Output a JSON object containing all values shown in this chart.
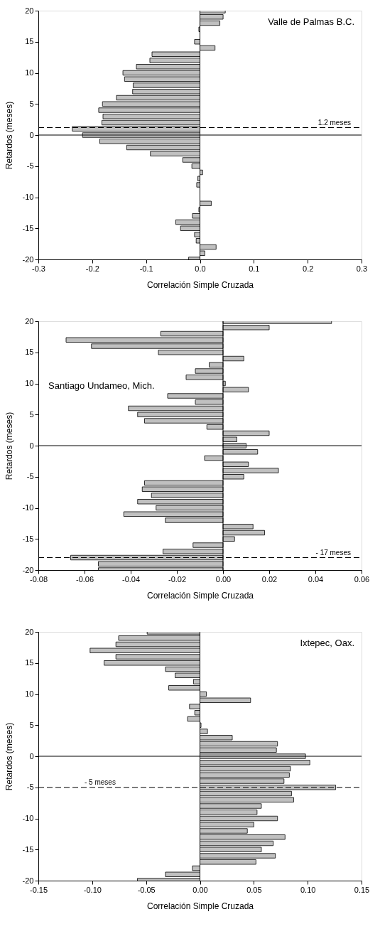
{
  "chart_data": [
    {
      "type": "bar",
      "orientation": "horizontal",
      "xlabel": "Correlación Simple Cruzada",
      "ylabel": "Retardos (meses)",
      "annotations": [
        "Valle de Palmas B.C."
      ],
      "x": [
        20,
        19,
        18,
        17,
        16,
        15,
        14,
        13,
        12,
        11,
        10,
        9,
        8,
        7,
        6,
        5,
        4,
        3,
        2,
        1,
        0,
        -1,
        -2,
        -3,
        -4,
        -5,
        -6,
        -7,
        -8,
        -9,
        -10,
        -11,
        -12,
        -13,
        -14,
        -15,
        -16,
        -17,
        -18,
        -19,
        -20
      ],
      "series": [
        {
          "color": "#c0c0c0",
          "values": [
            0.047,
            0.043,
            0.037,
            -0.002,
            null,
            -0.01,
            0.028,
            -0.089,
            -0.093,
            -0.118,
            -0.143,
            -0.14,
            -0.124,
            -0.125,
            -0.155,
            -0.181,
            -0.188,
            -0.18,
            -0.182,
            -0.237,
            -0.218,
            -0.186,
            -0.136,
            -0.092,
            -0.032,
            -0.015,
            0.005,
            -0.004,
            -0.006,
            null,
            null,
            0.021,
            -0.002,
            -0.014,
            -0.045,
            -0.036,
            -0.01,
            -0.007,
            0.03,
            0.009,
            -0.021
          ]
        }
      ],
      "xlim": [
        -0.3,
        0.3
      ],
      "xticks": [
        -0.3,
        -0.2,
        -0.1,
        {
          "value": 0,
          "label": "0.0"
        },
        0.1,
        0.2,
        0.3
      ],
      "ylim": [
        -20,
        20
      ],
      "yticks": [
        -20,
        -15,
        -10,
        -5,
        0,
        5,
        10,
        15,
        20
      ],
      "ref_lines": [
        {
          "axis": "y",
          "value": 1.2,
          "label": "1.2 meses",
          "line_style": "dashed"
        },
        {
          "axis": "y",
          "value": 0,
          "line_style": "solid"
        },
        {
          "axis": "x",
          "value": 0,
          "line_style": "solid"
        }
      ]
    },
    {
      "type": "bar",
      "orientation": "horizontal",
      "xlabel": "Correlación Simple Cruzada",
      "ylabel": "Retardos (meses)",
      "annotations": [
        "Santiago Undameo, Mich."
      ],
      "x": [
        20,
        19,
        18,
        17,
        16,
        15,
        14,
        13,
        12,
        11,
        10,
        9,
        8,
        7,
        6,
        5,
        4,
        3,
        2,
        1,
        0,
        -1,
        -2,
        -3,
        -4,
        -5,
        -6,
        -7,
        -8,
        -9,
        -10,
        -11,
        -12,
        -13,
        -14,
        -15,
        -16,
        -17,
        -18,
        -19,
        -20
      ],
      "series": [
        {
          "color": "#c0c0c0",
          "values": [
            0.047,
            0.02,
            -0.027,
            -0.068,
            -0.057,
            -0.028,
            0.009,
            -0.006,
            -0.012,
            -0.016,
            0.001,
            0.011,
            -0.024,
            -0.012,
            -0.041,
            -0.037,
            -0.034,
            -0.007,
            0.02,
            0.006,
            0.01,
            0.015,
            -0.008,
            0.011,
            0.024,
            0.009,
            -0.034,
            -0.035,
            -0.031,
            -0.037,
            -0.029,
            -0.043,
            -0.025,
            0.013,
            0.018,
            0.005,
            -0.013,
            -0.026,
            -0.066,
            -0.054,
            -0.054
          ]
        }
      ],
      "xlim": [
        -0.08,
        0.06
      ],
      "xticks": [
        {
          "value": -0.08,
          "label": "-0.08"
        },
        {
          "value": -0.06,
          "label": "-0.06"
        },
        {
          "value": -0.04,
          "label": "-0.04"
        },
        {
          "value": -0.02,
          "label": "-0.02"
        },
        {
          "value": 0,
          "label": "0.00"
        },
        {
          "value": 0.02,
          "label": "0.02"
        },
        {
          "value": 0.04,
          "label": "0.04"
        },
        {
          "value": 0.06,
          "label": "0.06"
        }
      ],
      "ylim": [
        -20,
        20
      ],
      "yticks": [
        -20,
        -15,
        -10,
        -5,
        0,
        5,
        10,
        15,
        20
      ],
      "ref_lines": [
        {
          "axis": "y",
          "value": -18,
          "label": "- 17 meses",
          "line_style": "dashed"
        },
        {
          "axis": "y",
          "value": 0,
          "line_style": "solid"
        },
        {
          "axis": "x",
          "value": 0,
          "line_style": "solid"
        }
      ]
    },
    {
      "type": "bar",
      "orientation": "horizontal",
      "xlabel": "Correlación Simple Cruzada",
      "ylabel": "Retardos (meses)",
      "annotations": [
        "Ixtepec, Oax."
      ],
      "x": [
        20,
        19,
        18,
        17,
        16,
        15,
        14,
        13,
        12,
        11,
        10,
        9,
        8,
        7,
        6,
        5,
        4,
        3,
        2,
        1,
        0,
        -1,
        -2,
        -3,
        -4,
        -5,
        -6,
        -7,
        -8,
        -9,
        -10,
        -11,
        -12,
        -13,
        -14,
        -15,
        -16,
        -17,
        -18,
        -19,
        -20
      ],
      "series": [
        {
          "color": "#c0c0c0",
          "values": [
            -0.049,
            -0.0755,
            -0.078,
            -0.102,
            -0.078,
            -0.089,
            -0.032,
            -0.023,
            -0.006,
            -0.029,
            0.006,
            0.047,
            -0.0097,
            -0.0048,
            -0.0115,
            0.001,
            0.007,
            0.03,
            0.072,
            0.071,
            0.098,
            0.102,
            0.084,
            0.083,
            0.078,
            0.126,
            0.085,
            0.087,
            0.057,
            0.053,
            0.072,
            0.05,
            0.044,
            0.079,
            0.068,
            0.057,
            0.07,
            0.052,
            -0.007,
            -0.032,
            -0.058
          ]
        }
      ],
      "xlim": [
        -0.15,
        0.15
      ],
      "xticks": [
        {
          "value": -0.15,
          "label": "-0.15"
        },
        {
          "value": -0.1,
          "label": "-0.10"
        },
        {
          "value": -0.05,
          "label": "-0.05"
        },
        {
          "value": 0,
          "label": "0.00"
        },
        {
          "value": 0.05,
          "label": "0.05"
        },
        {
          "value": 0.1,
          "label": "0.10"
        },
        {
          "value": 0.15,
          "label": "0.15"
        }
      ],
      "ylim": [
        -20,
        20
      ],
      "yticks": [
        -20,
        -15,
        -10,
        -5,
        0,
        5,
        10,
        15,
        20
      ],
      "ref_lines": [
        {
          "axis": "y",
          "value": -5,
          "label": "- 5 meses",
          "line_style": "dashed"
        },
        {
          "axis": "y",
          "value": 0,
          "line_style": "solid"
        },
        {
          "axis": "x",
          "value": 0,
          "line_style": "solid"
        }
      ]
    }
  ]
}
